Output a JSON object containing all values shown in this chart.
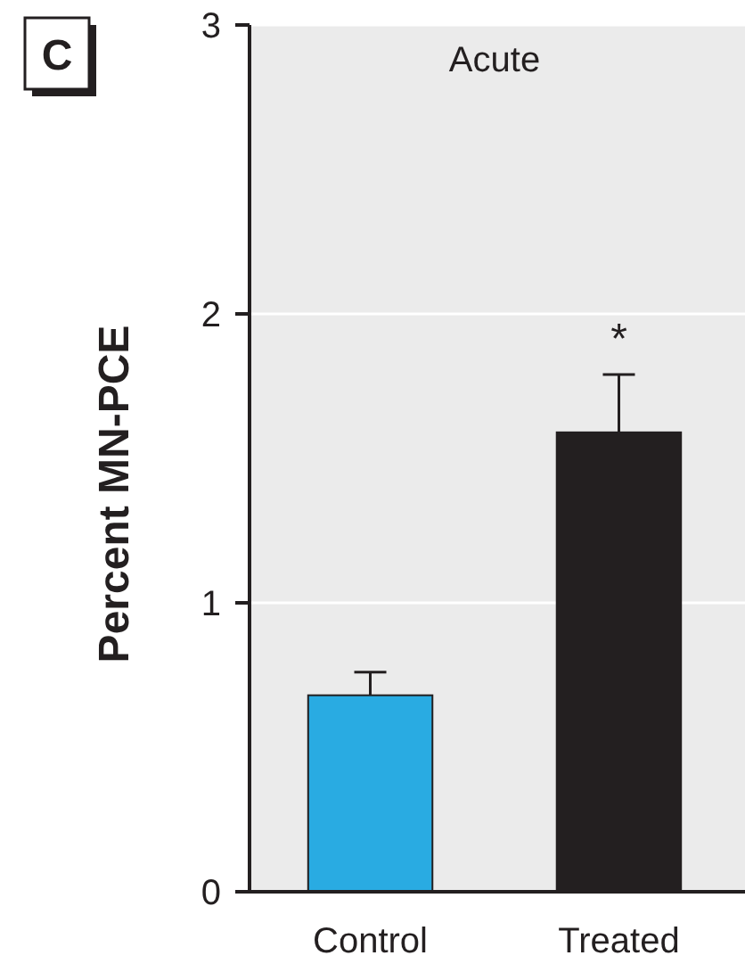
{
  "chart_data": {
    "type": "bar",
    "title": "Acute",
    "ylabel": "Percent MN-PCE",
    "categories": [
      "Control",
      "Treated"
    ],
    "values": [
      0.68,
      1.59
    ],
    "colors": [
      "#29abe2",
      "#231f20"
    ],
    "errors": [
      0.08,
      0.2
    ],
    "ylim": [
      0,
      3
    ],
    "yticks": [
      0,
      1,
      2,
      3
    ],
    "grid": "y",
    "annotations": [
      "C",
      "*"
    ]
  }
}
